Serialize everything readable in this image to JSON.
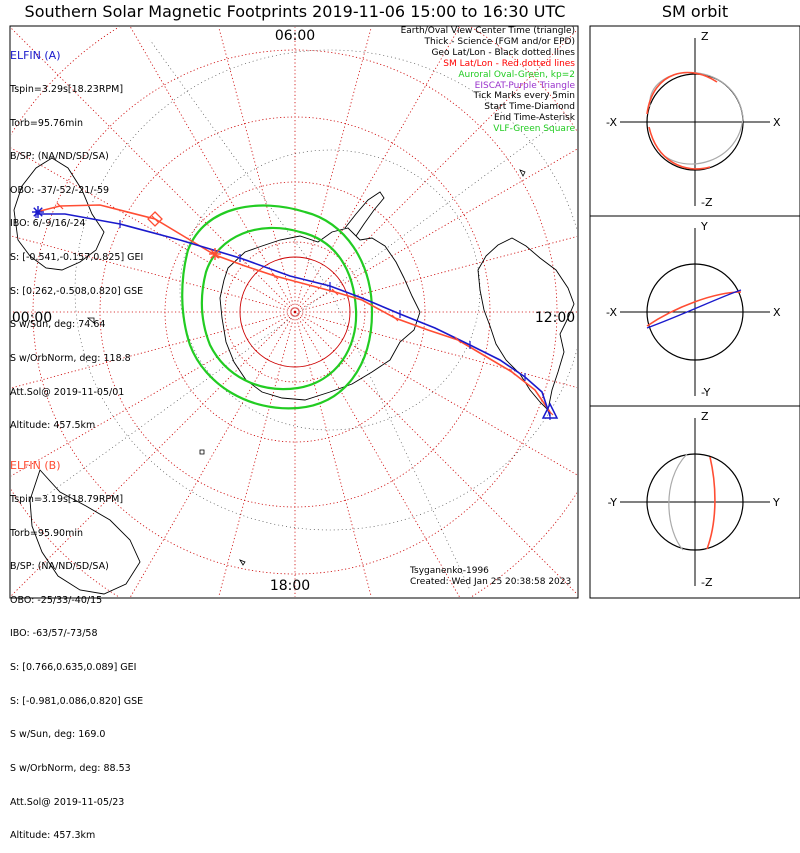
{
  "title": "Southern Solar Magnetic Footprints 2019-11-06 15:00 to 16:30 UTC",
  "sm_orbit_title": "SM orbit",
  "colors": {
    "elfin_a": "#1a1acc",
    "elfin_b": "#ff4d33",
    "oval": "#22cc22",
    "grid": "#cc0000",
    "eiscat": "#9932cc"
  },
  "elfin_a": {
    "name": "ELFIN (A)",
    "lines": [
      "Tspin=3.29s[18.23RPM]",
      "Torb=95.76min",
      "B/SP: (NA/ND/SD/SA)",
      "OBO: -37/-52/-21/-59",
      "IBO: 6/-9/16/-24",
      "S: [-0.541,-0.157,0.825] GEI",
      "S: [0.262,-0.508,0.820] GSE",
      "S w/Sun, deg: 74.64",
      "S w/OrbNorm, deg: 118.8",
      "Att.Sol@ 2019-11-05/01",
      "Altitude: 457.5km"
    ]
  },
  "elfin_b": {
    "name": "ELFIN (B)",
    "lines": [
      "Tspin=3.19s[18.79RPM]",
      "Torb=95.90min",
      "B/SP: (NA/ND/SD/SA)",
      "OBO: -25/33/-40/15",
      "IBO: -63/57/-73/58",
      "S: [0.766,0.635,0.089] GEI",
      "S: [-0.981,0.086,0.820] GSE",
      "S w/Sun, deg: 169.0",
      "S w/OrbNorm, deg: 88.53",
      "Att.Sol@ 2019-11-05/23",
      "Altitude: 457.3km"
    ]
  },
  "legend": [
    {
      "text": "Earth/Oval View Center Time (triangle)",
      "color": "#000000"
    },
    {
      "text": "Thick - Science (FGM and/or EPD)",
      "color": "#000000"
    },
    {
      "text": "Geo Lat/Lon - Black dotted lines",
      "color": "#000000"
    },
    {
      "text": "SM Lat/Lon - Red dotted lines",
      "color": "#ff0000"
    },
    {
      "text": "Auroral Oval-Green, kp=2",
      "color": "#22cc22"
    },
    {
      "text": "EISCAT-Purple Triangle",
      "color": "#9932cc"
    },
    {
      "text": "Tick Marks every 5min",
      "color": "#000000"
    },
    {
      "text": "Start Time-Diamond",
      "color": "#000000"
    },
    {
      "text": "End Time-Asterisk",
      "color": "#000000"
    },
    {
      "text": "VLF-Green Square",
      "color": "#22cc22"
    }
  ],
  "credit": {
    "model": "Tsyganenko-1996",
    "created": "Created: Wed Jan 25 20:38:58 2023"
  },
  "chart_data": {
    "type": "scatter",
    "polar_map": {
      "mlt_labels": [
        "06:00",
        "00:00",
        "12:00",
        "18:00"
      ],
      "latitude_circles_deg": [
        -80,
        -70,
        -60,
        -50,
        -40
      ],
      "meridian_spacing_deg": 15
    },
    "sm_panels": [
      {
        "h_left": "-X",
        "h_right": "X",
        "v_top": "Z",
        "v_bottom": "-Z"
      },
      {
        "h_left": "-X",
        "h_right": "X",
        "v_top": "Y",
        "v_bottom": "-Y"
      },
      {
        "h_left": "-Y",
        "h_right": "Y",
        "v_top": "Z",
        "v_bottom": "-Z"
      }
    ]
  }
}
